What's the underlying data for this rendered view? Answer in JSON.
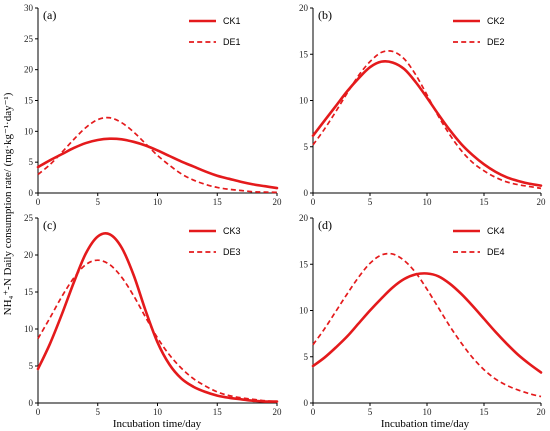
{
  "figure": {
    "ylabel": "NH₄⁺-N Daily consumption rate/ (mg·kg⁻¹·day⁻¹)",
    "xlabel": "Incubation time/day",
    "line_color": "#e41a1c"
  },
  "chart_data": [
    {
      "type": "line",
      "panel_label": "(a)",
      "xlim": [
        0,
        20
      ],
      "ylim": [
        0,
        30
      ],
      "xticks": [
        "0",
        "5",
        "10",
        "15",
        "20"
      ],
      "yticks": [
        "0",
        "5",
        "10",
        "15",
        "20",
        "25",
        "30"
      ],
      "legend_placement": "top-right",
      "series": [
        {
          "name": "CK1",
          "style": "solid",
          "x": [
            0,
            1,
            2,
            3,
            4,
            5,
            6,
            7,
            8,
            9,
            10,
            11,
            12,
            13,
            14,
            15,
            16,
            17,
            18,
            19,
            20
          ],
          "y": [
            4.2,
            5.3,
            6.3,
            7.3,
            8.1,
            8.6,
            8.8,
            8.7,
            8.3,
            7.7,
            6.9,
            6.0,
            5.1,
            4.3,
            3.5,
            2.8,
            2.3,
            1.8,
            1.4,
            1.1,
            0.8
          ]
        },
        {
          "name": "DE1",
          "style": "dashed",
          "x": [
            0,
            1,
            2,
            3,
            4,
            5,
            6,
            7,
            8,
            9,
            10,
            11,
            12,
            13,
            14,
            15,
            16,
            17,
            18,
            19,
            20
          ],
          "y": [
            3.0,
            4.6,
            6.6,
            8.7,
            10.6,
            11.9,
            12.2,
            11.4,
            9.9,
            8.0,
            6.1,
            4.5,
            3.1,
            2.1,
            1.4,
            0.9,
            0.6,
            0.4,
            0.2,
            0.15,
            0.1
          ]
        }
      ]
    },
    {
      "type": "line",
      "panel_label": "(b)",
      "xlim": [
        0,
        20
      ],
      "ylim": [
        0,
        20
      ],
      "xticks": [
        "0",
        "5",
        "10",
        "15",
        "20"
      ],
      "yticks": [
        "0",
        "5",
        "10",
        "15",
        "20"
      ],
      "legend_placement": "top-right",
      "series": [
        {
          "name": "CK2",
          "style": "solid",
          "x": [
            0,
            1,
            2,
            3,
            4,
            5,
            6,
            7,
            8,
            9,
            10,
            11,
            12,
            13,
            14,
            15,
            16,
            17,
            18,
            19,
            20
          ],
          "y": [
            6.2,
            7.8,
            9.4,
            11.0,
            12.4,
            13.6,
            14.2,
            14.1,
            13.4,
            12.0,
            10.3,
            8.5,
            6.8,
            5.3,
            4.1,
            3.1,
            2.3,
            1.7,
            1.3,
            1.0,
            0.8
          ]
        },
        {
          "name": "DE2",
          "style": "dashed",
          "x": [
            0,
            1,
            2,
            3,
            4,
            5,
            6,
            7,
            8,
            9,
            10,
            11,
            12,
            13,
            14,
            15,
            16,
            17,
            18,
            19,
            20
          ],
          "y": [
            5.2,
            6.9,
            8.8,
            10.8,
            12.7,
            14.2,
            15.2,
            15.3,
            14.5,
            12.8,
            10.6,
            8.3,
            6.3,
            4.6,
            3.3,
            2.4,
            1.7,
            1.2,
            0.9,
            0.7,
            0.5
          ]
        }
      ]
    },
    {
      "type": "line",
      "panel_label": "(c)",
      "xlim": [
        0,
        20
      ],
      "ylim": [
        0,
        25
      ],
      "xticks": [
        "0",
        "5",
        "10",
        "15",
        "20"
      ],
      "yticks": [
        "0",
        "5",
        "10",
        "15",
        "20",
        "25"
      ],
      "legend_placement": "top-right",
      "series": [
        {
          "name": "CK3",
          "style": "solid",
          "x": [
            0,
            1,
            2,
            3,
            4,
            5,
            6,
            7,
            8,
            9,
            10,
            11,
            12,
            13,
            14,
            15,
            16,
            17,
            18,
            19,
            20
          ],
          "y": [
            4.6,
            8.0,
            12.0,
            16.3,
            20.2,
            22.5,
            22.8,
            21.0,
            17.3,
            12.5,
            8.2,
            5.2,
            3.3,
            2.2,
            1.5,
            1.0,
            0.7,
            0.5,
            0.3,
            0.2,
            0.2
          ]
        },
        {
          "name": "DE3",
          "style": "dashed",
          "x": [
            0,
            1,
            2,
            3,
            4,
            5,
            6,
            7,
            8,
            9,
            10,
            11,
            12,
            13,
            14,
            15,
            16,
            17,
            18,
            19,
            20
          ],
          "y": [
            8.7,
            11.5,
            14.4,
            16.9,
            18.7,
            19.3,
            18.7,
            17.0,
            14.5,
            11.6,
            8.8,
            6.5,
            4.7,
            3.3,
            2.3,
            1.5,
            1.0,
            0.7,
            0.5,
            0.3,
            0.2
          ]
        }
      ]
    },
    {
      "type": "line",
      "panel_label": "(d)",
      "xlim": [
        0,
        20
      ],
      "ylim": [
        0,
        20
      ],
      "xticks": [
        "0",
        "5",
        "10",
        "15",
        "20"
      ],
      "yticks": [
        "0",
        "5",
        "10",
        "15",
        "20"
      ],
      "legend_placement": "top-right",
      "series": [
        {
          "name": "CK4",
          "style": "solid",
          "x": [
            0,
            1,
            2,
            3,
            4,
            5,
            6,
            7,
            8,
            9,
            10,
            11,
            12,
            13,
            14,
            15,
            16,
            17,
            18,
            19,
            20
          ],
          "y": [
            4.0,
            4.9,
            6.0,
            7.2,
            8.6,
            10.0,
            11.3,
            12.5,
            13.4,
            13.9,
            14.0,
            13.7,
            12.9,
            11.8,
            10.5,
            9.1,
            7.7,
            6.4,
            5.2,
            4.2,
            3.3
          ]
        },
        {
          "name": "DE4",
          "style": "dashed",
          "x": [
            0,
            1,
            2,
            3,
            4,
            5,
            6,
            7,
            8,
            9,
            10,
            11,
            12,
            13,
            14,
            15,
            16,
            17,
            18,
            19,
            20
          ],
          "y": [
            6.3,
            8.0,
            9.9,
            11.8,
            13.6,
            15.1,
            16.0,
            16.1,
            15.4,
            14.1,
            12.3,
            10.3,
            8.3,
            6.5,
            4.9,
            3.6,
            2.6,
            1.9,
            1.4,
            1.0,
            0.7
          ]
        }
      ]
    }
  ]
}
